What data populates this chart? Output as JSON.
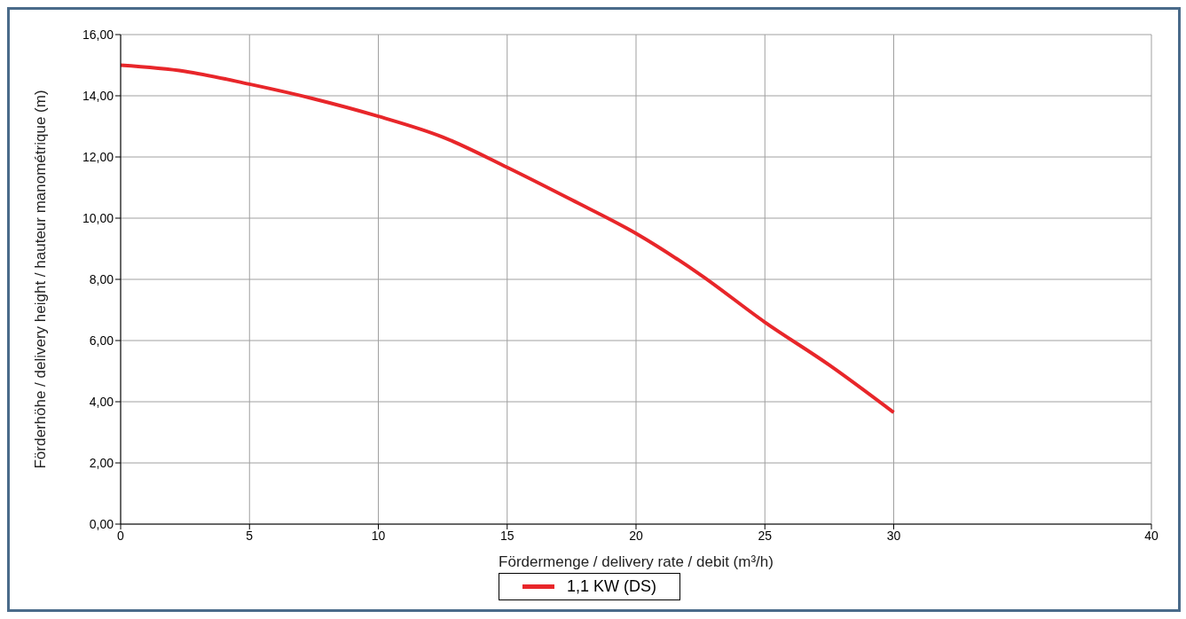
{
  "chart_data": {
    "type": "line",
    "xlabel": "Fördermenge / delivery rate / debit (m³/h)",
    "ylabel": "Förderhöhe / delivery height / hauteur manométrique (m)",
    "x": [
      0,
      2.5,
      5,
      7.5,
      10,
      12.5,
      15,
      17.5,
      20,
      22.5,
      25,
      27.5,
      30
    ],
    "series": [
      {
        "name": "1,1 KW (DS)",
        "color": "#e8262a",
        "values": [
          15.0,
          14.8,
          14.38,
          13.9,
          13.33,
          12.65,
          11.66,
          10.6,
          9.5,
          8.15,
          6.6,
          5.2,
          3.65
        ]
      }
    ],
    "xlim": [
      0,
      40
    ],
    "xticks": [
      0,
      5,
      10,
      15,
      20,
      25,
      30,
      40
    ],
    "ylim": [
      0,
      16
    ],
    "yticks": [
      {
        "value": 0,
        "label": "0,00"
      },
      {
        "value": 2,
        "label": "2,00"
      },
      {
        "value": 4,
        "label": "4,00"
      },
      {
        "value": 6,
        "label": "6,00"
      },
      {
        "value": 8,
        "label": "8,00"
      },
      {
        "value": 10,
        "label": "10,00"
      },
      {
        "value": 12,
        "label": "12,00"
      },
      {
        "value": 14,
        "label": "14,00"
      },
      {
        "value": 16,
        "label": "16,00"
      }
    ],
    "grid": true,
    "legend": "bottom"
  }
}
